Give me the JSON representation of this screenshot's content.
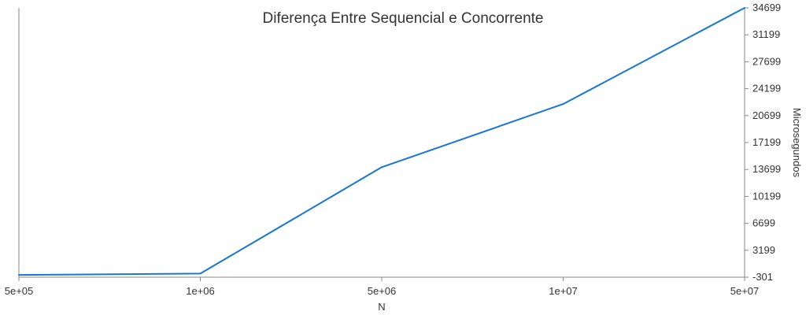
{
  "chart_data": {
    "type": "line",
    "title": "Diferença Entre Sequencial e Concorrente",
    "xlabel": "N",
    "ylabel": "Microsegundos",
    "categories": [
      "5e+05",
      "1e+06",
      "5e+06",
      "1e+07",
      "5e+07"
    ],
    "series": [
      {
        "values": [
          0,
          170,
          14000,
          22200,
          34699
        ]
      }
    ],
    "yticks": [
      "-301",
      "3199",
      "6699",
      "10199",
      "13699",
      "17199",
      "20699",
      "24199",
      "27699",
      "31199",
      "34699"
    ],
    "ylim": [
      -301,
      34699
    ],
    "grid": false,
    "y_axis_side": "right",
    "line_color": "#1976d2",
    "axis_color": "#888888"
  }
}
